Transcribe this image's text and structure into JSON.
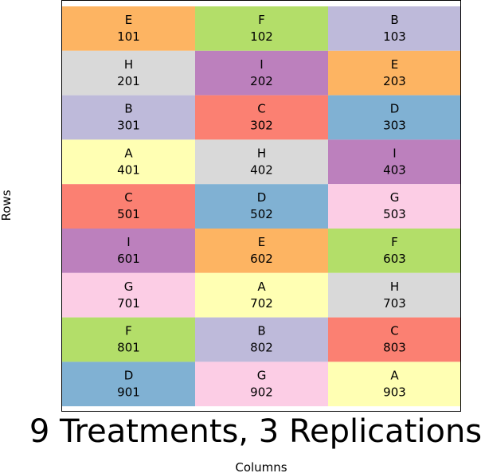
{
  "chart_data": {
    "type": "heatmap",
    "title": "9 Treatments, 3 Replications",
    "xlabel": "Columns",
    "ylabel": "Rows",
    "n_rows": 9,
    "n_cols": 3,
    "treatment_colors": {
      "A": "#ffffb3",
      "B": "#bebada",
      "C": "#fb8072",
      "D": "#80b1d3",
      "E": "#fdb462",
      "F": "#b3de69",
      "G": "#fccde5",
      "H": "#d9d9d9",
      "I": "#bc80bd"
    },
    "cells": [
      {
        "row": 1,
        "col": 1,
        "treatment": "E",
        "plot": "101"
      },
      {
        "row": 1,
        "col": 2,
        "treatment": "F",
        "plot": "102"
      },
      {
        "row": 1,
        "col": 3,
        "treatment": "B",
        "plot": "103"
      },
      {
        "row": 2,
        "col": 1,
        "treatment": "H",
        "plot": "201"
      },
      {
        "row": 2,
        "col": 2,
        "treatment": "I",
        "plot": "202"
      },
      {
        "row": 2,
        "col": 3,
        "treatment": "E",
        "plot": "203"
      },
      {
        "row": 3,
        "col": 1,
        "treatment": "B",
        "plot": "301"
      },
      {
        "row": 3,
        "col": 2,
        "treatment": "C",
        "plot": "302"
      },
      {
        "row": 3,
        "col": 3,
        "treatment": "D",
        "plot": "303"
      },
      {
        "row": 4,
        "col": 1,
        "treatment": "A",
        "plot": "401"
      },
      {
        "row": 4,
        "col": 2,
        "treatment": "H",
        "plot": "402"
      },
      {
        "row": 4,
        "col": 3,
        "treatment": "I",
        "plot": "403"
      },
      {
        "row": 5,
        "col": 1,
        "treatment": "C",
        "plot": "501"
      },
      {
        "row": 5,
        "col": 2,
        "treatment": "D",
        "plot": "502"
      },
      {
        "row": 5,
        "col": 3,
        "treatment": "G",
        "plot": "503"
      },
      {
        "row": 6,
        "col": 1,
        "treatment": "I",
        "plot": "601"
      },
      {
        "row": 6,
        "col": 2,
        "treatment": "E",
        "plot": "602"
      },
      {
        "row": 6,
        "col": 3,
        "treatment": "F",
        "plot": "603"
      },
      {
        "row": 7,
        "col": 1,
        "treatment": "G",
        "plot": "701"
      },
      {
        "row": 7,
        "col": 2,
        "treatment": "A",
        "plot": "702"
      },
      {
        "row": 7,
        "col": 3,
        "treatment": "H",
        "plot": "703"
      },
      {
        "row": 8,
        "col": 1,
        "treatment": "F",
        "plot": "801"
      },
      {
        "row": 8,
        "col": 2,
        "treatment": "B",
        "plot": "802"
      },
      {
        "row": 8,
        "col": 3,
        "treatment": "C",
        "plot": "803"
      },
      {
        "row": 9,
        "col": 1,
        "treatment": "D",
        "plot": "901"
      },
      {
        "row": 9,
        "col": 2,
        "treatment": "G",
        "plot": "902"
      },
      {
        "row": 9,
        "col": 3,
        "treatment": "A",
        "plot": "903"
      }
    ],
    "grid": false,
    "legend": "none"
  }
}
